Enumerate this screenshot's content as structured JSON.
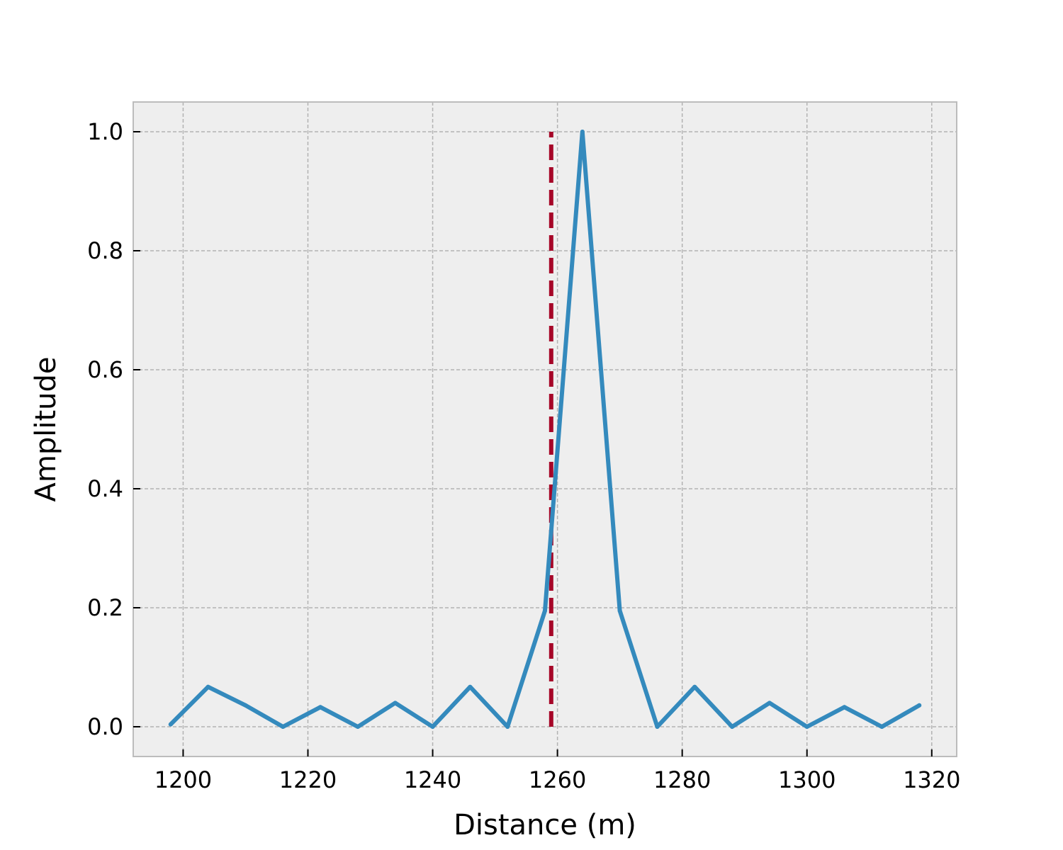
{
  "chart_data": {
    "type": "line",
    "title": "",
    "xlabel": "Distance (m)",
    "ylabel": "Amplitude",
    "xlim": [
      1192,
      1324
    ],
    "ylim": [
      -0.05,
      1.05
    ],
    "xticks": [
      1200,
      1220,
      1240,
      1260,
      1280,
      1300,
      1320
    ],
    "xtick_labels": [
      "1200",
      "1220",
      "1240",
      "1260",
      "1280",
      "1300",
      "1320"
    ],
    "yticks": [
      0.0,
      0.2,
      0.4,
      0.6,
      0.8,
      1.0
    ],
    "ytick_labels": [
      "0.0",
      "0.2",
      "0.4",
      "0.6",
      "0.8",
      "1.0"
    ],
    "grid": true,
    "legend": "none",
    "series": [
      {
        "x": [
          1198,
          1204,
          1210,
          1216,
          1222,
          1228,
          1234,
          1240,
          1246,
          1252,
          1258,
          1264,
          1270,
          1276,
          1282,
          1288,
          1294,
          1300,
          1306,
          1312,
          1318
        ],
        "y": [
          0.004,
          0.067,
          0.036,
          0.0,
          0.033,
          0.0,
          0.04,
          0.0,
          0.067,
          0.0,
          0.195,
          1.0,
          0.195,
          0.0,
          0.067,
          0.0,
          0.04,
          0.0,
          0.033,
          0.0,
          0.036
        ],
        "color": "#348abd",
        "style": "solid"
      }
    ],
    "reference_line": {
      "orientation": "vertical",
      "x": 1259,
      "y_range": [
        0.0,
        1.0
      ],
      "color": "#a60628",
      "style": "dashed"
    },
    "colors": {
      "plot_background": "#eeeeee",
      "grid": "#b2b2b2",
      "frame": "#bcbcbc"
    }
  }
}
